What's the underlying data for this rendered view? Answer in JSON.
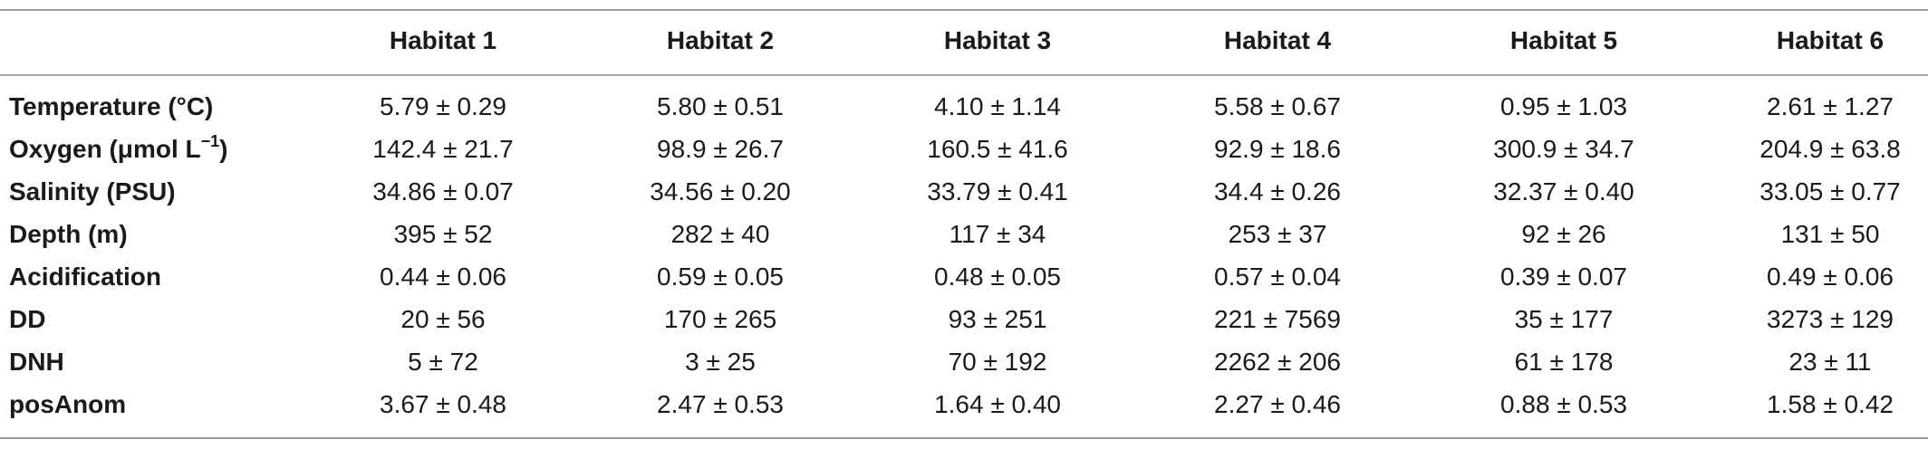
{
  "table": {
    "columns": [
      "",
      "Habitat 1",
      "Habitat 2",
      "Habitat 3",
      "Habitat 4",
      "Habitat 5",
      "Habitat 6"
    ],
    "rows": [
      {
        "label": "Temperature (°C)",
        "label_sup": "",
        "label_tail": "",
        "values": [
          "5.79 ± 0.29",
          "5.80 ± 0.51",
          "4.10 ± 1.14",
          "5.58 ± 0.67",
          "0.95 ± 1.03",
          "2.61 ± 1.27"
        ]
      },
      {
        "label": "Oxygen (μmol L",
        "label_sup": "−1",
        "label_tail": ")",
        "values": [
          "142.4 ± 21.7",
          "98.9 ± 26.7",
          "160.5 ± 41.6",
          "92.9 ± 18.6",
          "300.9 ± 34.7",
          "204.9 ± 63.8"
        ]
      },
      {
        "label": "Salinity (PSU)",
        "label_sup": "",
        "label_tail": "",
        "values": [
          "34.86 ± 0.07",
          "34.56 ± 0.20",
          "33.79 ± 0.41",
          "34.4 ± 0.26",
          "32.37 ± 0.40",
          "33.05 ± 0.77"
        ]
      },
      {
        "label": "Depth (m)",
        "label_sup": "",
        "label_tail": "",
        "values": [
          "395 ± 52",
          "282 ± 40",
          "117 ± 34",
          "253 ± 37",
          "92 ± 26",
          "131 ± 50"
        ]
      },
      {
        "label": "Acidification",
        "label_sup": "",
        "label_tail": "",
        "values": [
          "0.44 ± 0.06",
          "0.59 ± 0.05",
          "0.48 ± 0.05",
          "0.57 ± 0.04",
          "0.39 ± 0.07",
          "0.49 ± 0.06"
        ]
      },
      {
        "label": "DD",
        "label_sup": "",
        "label_tail": "",
        "values": [
          "20 ± 56",
          "170 ± 265",
          "93 ± 251",
          "221 ± 7569",
          "35 ± 177",
          "3273 ± 129"
        ]
      },
      {
        "label": "DNH",
        "label_sup": "",
        "label_tail": "",
        "values": [
          "5 ± 72",
          "3 ± 25",
          "70 ± 192",
          "2262 ± 206",
          "61 ± 178",
          "23 ± 11"
        ]
      },
      {
        "label": "posAnom",
        "label_sup": "",
        "label_tail": "",
        "values": [
          "3.67 ± 0.48",
          "2.47 ± 0.53",
          "1.64 ± 0.40",
          "2.27 ± 0.46",
          "0.88 ± 0.53",
          "1.58 ± 0.42"
        ]
      }
    ]
  }
}
